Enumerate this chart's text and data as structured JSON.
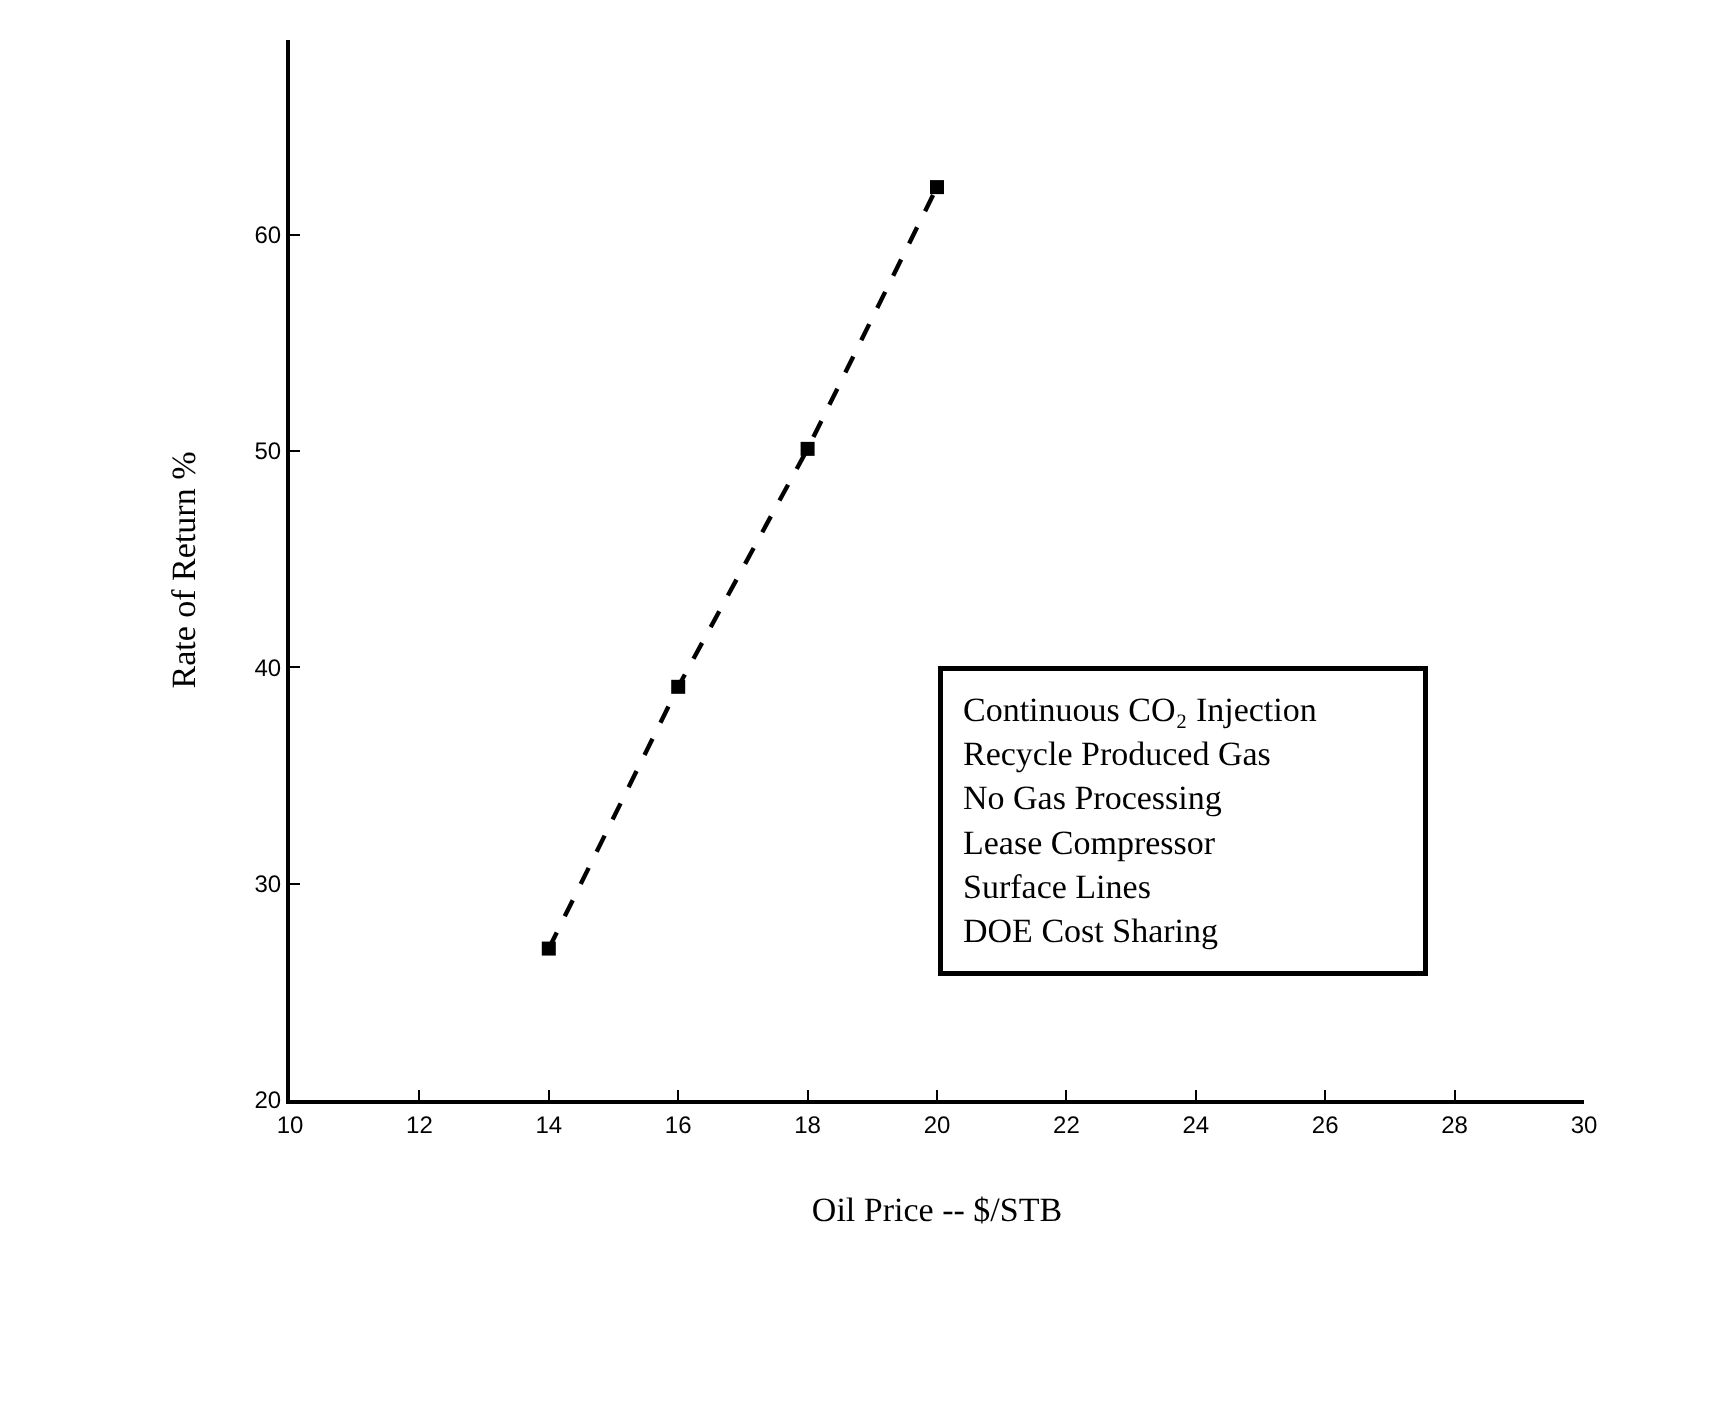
{
  "chart_data": {
    "type": "line",
    "xlabel": "Oil Price -- $/STB",
    "ylabel": "Rate of Return %",
    "x": [
      14,
      16,
      18,
      20
    ],
    "series": [
      {
        "color": "#000000",
        "values": [
          27,
          39.1,
          50.1,
          62.2
        ]
      }
    ],
    "xlim": [
      10,
      30
    ],
    "xticks": [
      10,
      12,
      14,
      16,
      18,
      20,
      22,
      24,
      26,
      28,
      30
    ],
    "ylim": [
      20,
      69
    ],
    "yticks": [
      20,
      30,
      40,
      50,
      60
    ],
    "marker": "square",
    "line_style": "dashed",
    "annotations": [
      "Continuous CO₂ Injection",
      "Recycle Produced Gas",
      "No Gas Processing",
      "Lease Compressor",
      "Surface Lines",
      "DOE Cost Sharing"
    ]
  }
}
